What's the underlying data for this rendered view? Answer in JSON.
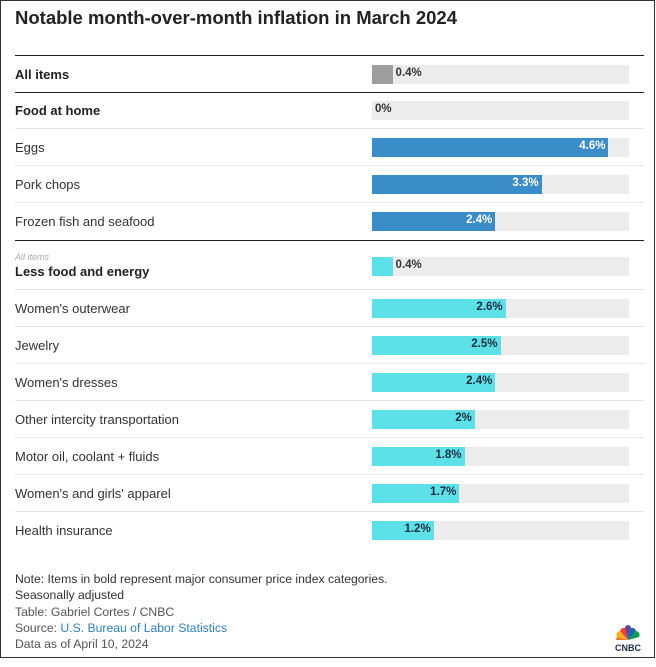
{
  "title": "Notable month-over-month inflation in March 2024",
  "chart_data": {
    "type": "bar",
    "orientation": "horizontal",
    "xlim": [
      0,
      5
    ],
    "value_suffix": "%",
    "colors": {
      "all_items": "#9e9e9e",
      "food": "#3a8dc8",
      "core": "#5ce1e8",
      "track": "#ececec"
    },
    "rows": [
      {
        "label": "All items",
        "value": 0.4,
        "display": "0.4%",
        "bold": true,
        "group": "all_items"
      },
      {
        "label": "Food at home",
        "value": 0,
        "display": "0%",
        "bold": true,
        "group": "food"
      },
      {
        "label": "Eggs",
        "value": 4.6,
        "display": "4.6%",
        "bold": false,
        "group": "food"
      },
      {
        "label": "Pork chops",
        "value": 3.3,
        "display": "3.3%",
        "bold": false,
        "group": "food"
      },
      {
        "label": "Frozen fish and seafood",
        "value": 2.4,
        "display": "2.4%",
        "bold": false,
        "group": "food"
      },
      {
        "sublabel": "All items",
        "label": "Less food and energy",
        "value": 0.4,
        "display": "0.4%",
        "bold": true,
        "group": "core"
      },
      {
        "label": "Women's outerwear",
        "value": 2.6,
        "display": "2.6%",
        "bold": false,
        "group": "core"
      },
      {
        "label": "Jewelry",
        "value": 2.5,
        "display": "2.5%",
        "bold": false,
        "group": "core"
      },
      {
        "label": "Women's dresses",
        "value": 2.4,
        "display": "2.4%",
        "bold": false,
        "group": "core"
      },
      {
        "label": "Other intercity transportation",
        "value": 2.0,
        "display": "2%",
        "bold": false,
        "group": "core"
      },
      {
        "label": "Motor oil, coolant + fluids",
        "value": 1.8,
        "display": "1.8%",
        "bold": false,
        "group": "core"
      },
      {
        "label": "Women's and girls' apparel",
        "value": 1.7,
        "display": "1.7%",
        "bold": false,
        "group": "core"
      },
      {
        "label": "Health insurance",
        "value": 1.2,
        "display": "1.2%",
        "bold": false,
        "group": "core"
      }
    ]
  },
  "notes": {
    "note": "Note: Items in bold represent major consumer price index categories.",
    "adjusted": "Seasonally adjusted",
    "credit": "Table: Gabriel Cortes / CNBC",
    "source_prefix": "Source: ",
    "source_link": "U.S. Bureau of Labor Statistics",
    "date": "Data as of April 10, 2024"
  },
  "logo": {
    "text": "CNBC"
  }
}
